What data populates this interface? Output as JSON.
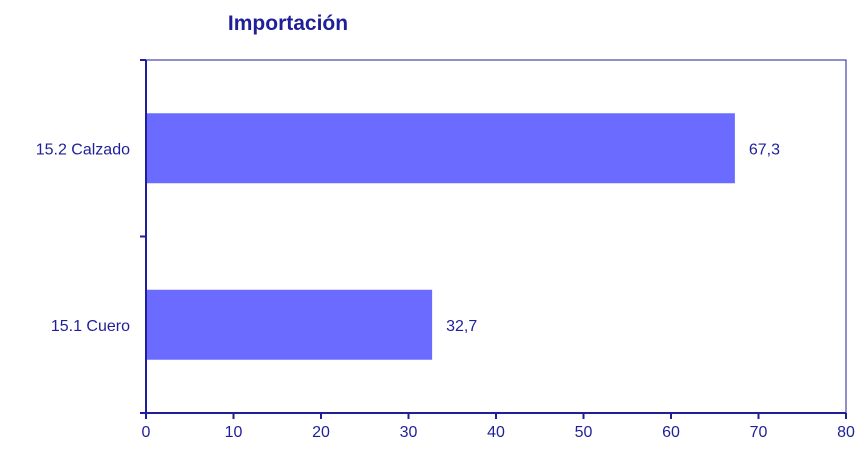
{
  "chart_data": {
    "type": "bar",
    "orientation": "horizontal",
    "title": "Importación",
    "categories": [
      "15.2 Calzado",
      "15.1 Cuero"
    ],
    "values": [
      67.3,
      32.7
    ],
    "data_labels": [
      "67,3",
      "32,7"
    ],
    "xlim": [
      0,
      80
    ],
    "x_ticks": [
      0,
      10,
      20,
      30,
      40,
      50,
      60,
      70,
      80
    ],
    "xlabel": "",
    "ylabel": "",
    "grid": false,
    "legend": "none",
    "bar_color": "#6b6bff",
    "text_color": "#1f1f99",
    "axis_color": "#1f1f99",
    "border_color": "#1f1f99"
  }
}
